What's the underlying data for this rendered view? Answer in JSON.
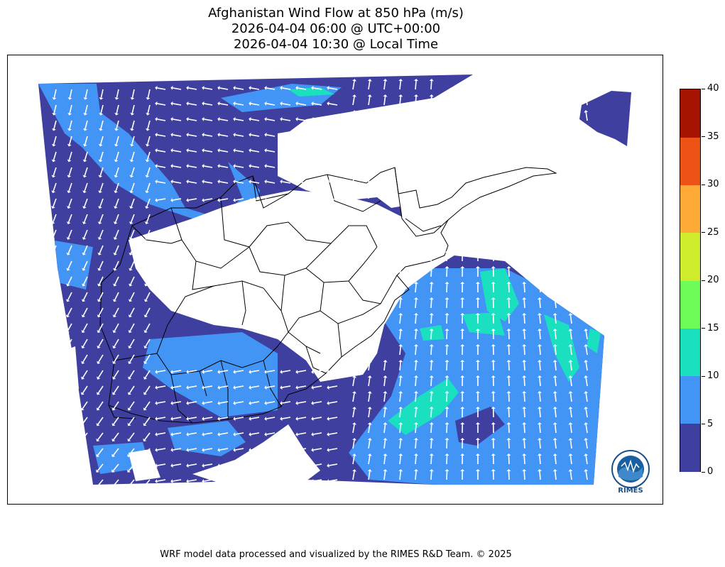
{
  "title": {
    "line1": "Afghanistan Wind Flow at 850 hPa (m/s)",
    "line2": "2026-04-04 06:00 @ UTC+00:00",
    "line3": "2026-04-04 10:30 @ Local Time"
  },
  "colorbar": {
    "min": 0,
    "max": 40,
    "bins": [
      {
        "from": 0,
        "to": 5,
        "color": "#3f3f9f"
      },
      {
        "from": 5,
        "to": 10,
        "color": "#4295f5"
      },
      {
        "from": 10,
        "to": 15,
        "color": "#1be0c0"
      },
      {
        "from": 15,
        "to": 20,
        "color": "#6efc59"
      },
      {
        "from": 20,
        "to": 25,
        "color": "#ceec2c"
      },
      {
        "from": 25,
        "to": 30,
        "color": "#fdaa37"
      },
      {
        "from": 30,
        "to": 35,
        "color": "#ec5314"
      },
      {
        "from": 35,
        "to": 40,
        "color": "#a41401"
      }
    ],
    "ticks": [
      "0",
      "5",
      "10",
      "15",
      "20",
      "25",
      "30",
      "35",
      "40"
    ]
  },
  "logo": {
    "text": "RIMES",
    "icon": "rimes-globe-logo"
  },
  "footer": "WRF model data processed and visualized by the RIMES R&D Team. © 2025"
}
